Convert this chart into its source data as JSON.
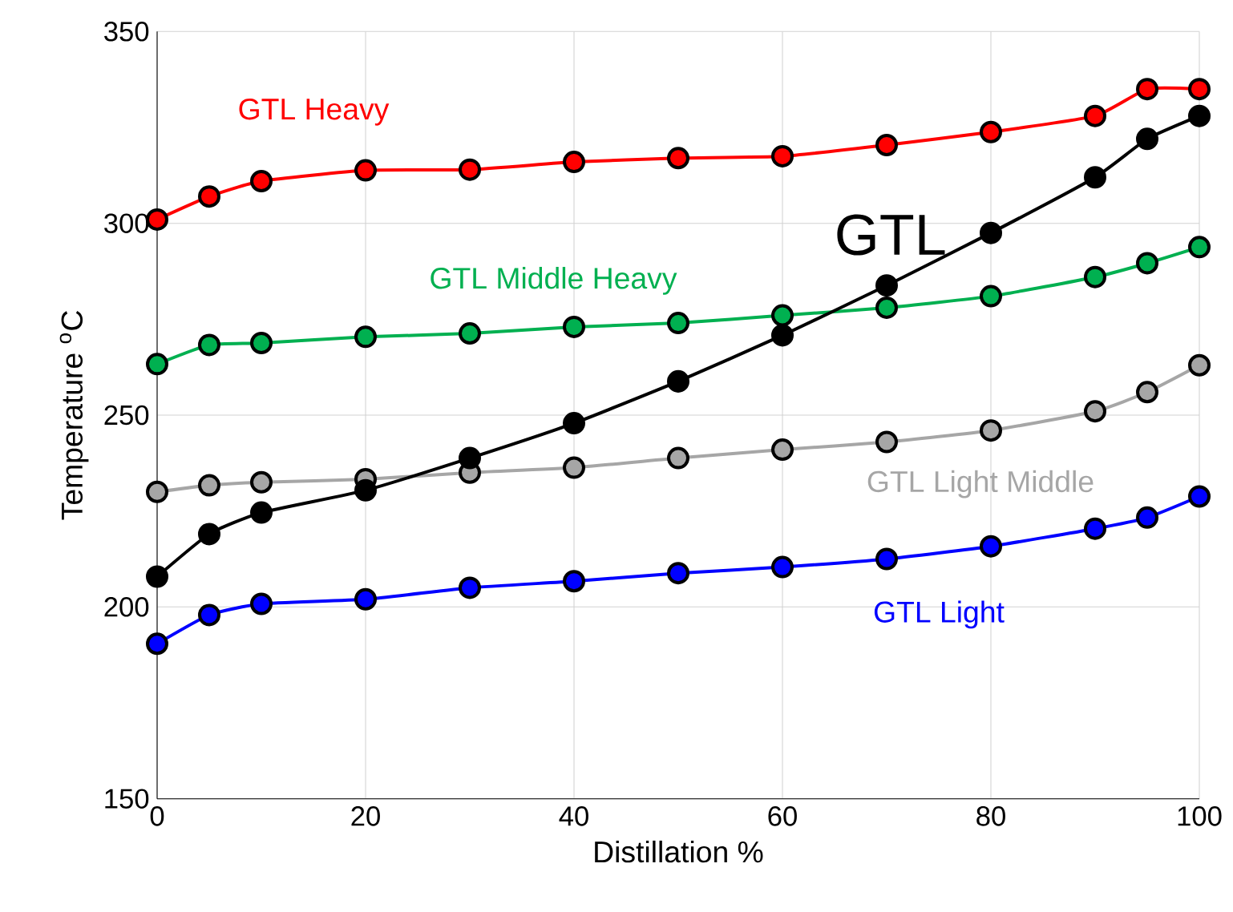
{
  "chart_data": {
    "type": "line",
    "xlabel": "Distillation %",
    "ylabel": "Temperature  $^{o}$C",
    "x": [
      0,
      5,
      10,
      20,
      30,
      40,
      50,
      60,
      70,
      80,
      90,
      95,
      100
    ],
    "series": [
      {
        "name": "GTL Heavy",
        "color": "#ff0000",
        "values": [
          301,
          307,
          311,
          313.8,
          314,
          316,
          317,
          317.5,
          320.4,
          323.8,
          328,
          335,
          335
        ]
      },
      {
        "name": "GTL Middle Heavy",
        "color": "#00b050",
        "values": [
          263.3,
          268.3,
          268.8,
          270.4,
          271.3,
          273,
          274,
          276,
          278,
          281,
          286,
          289.6,
          293.8
        ]
      },
      {
        "name": "GTL Light Middle",
        "color": "#a6a6a6",
        "values": [
          230,
          231.7,
          232.5,
          233.3,
          235,
          236.3,
          238.8,
          241,
          243,
          246,
          251,
          256,
          263
        ]
      },
      {
        "name": "GTL",
        "color": "#000000",
        "values": [
          207.9,
          219,
          224.6,
          230.4,
          238.8,
          247.9,
          258.8,
          270.8,
          283.8,
          297.5,
          312,
          322,
          328
        ]
      },
      {
        "name": "GTL Light",
        "color": "#0000ff",
        "values": [
          190.4,
          197.9,
          200.8,
          202,
          205,
          206.7,
          208.8,
          210.4,
          212.5,
          215.8,
          220.4,
          223.3,
          228.8
        ]
      }
    ],
    "xlim": [
      0,
      100
    ],
    "ylim": [
      150,
      350
    ],
    "xticks": [
      0,
      20,
      40,
      60,
      80,
      100
    ],
    "yticks": [
      150,
      200,
      250,
      300,
      350
    ],
    "grid": true,
    "marker": "circle",
    "line_style": "solid"
  }
}
